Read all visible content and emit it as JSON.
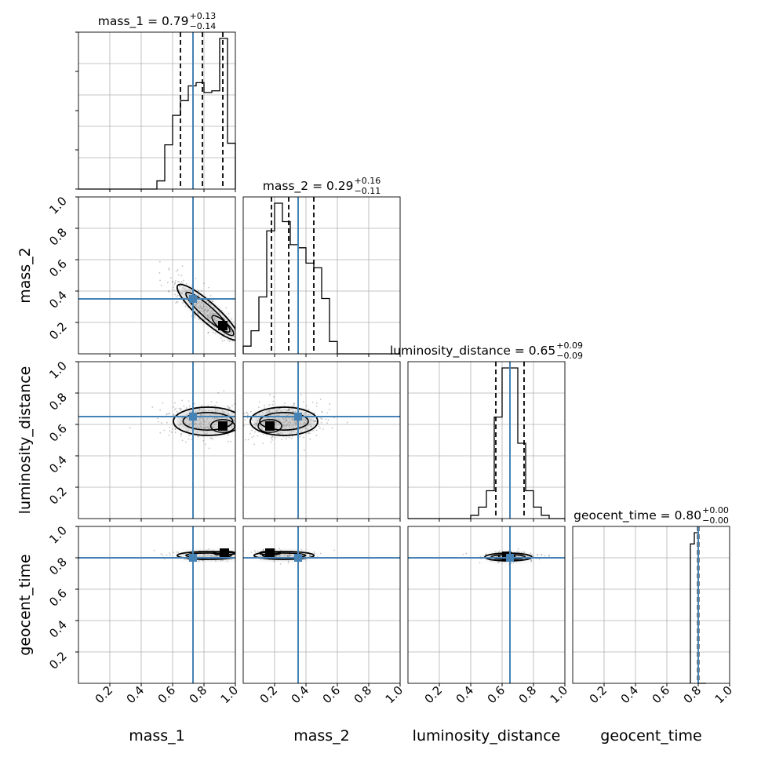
{
  "chart_data": {
    "type": "corner",
    "parameters": [
      "mass_1",
      "mass_2",
      "luminosity_distance",
      "geocent_time"
    ],
    "axis_labels": [
      "mass_1",
      "mass_2",
      "luminosity_distance",
      "geocent_time"
    ],
    "range": [
      0,
      1
    ],
    "tick_values": [
      0.2,
      0.4,
      0.6,
      0.8,
      1.0
    ],
    "tick_labels": [
      "0.2",
      "0.4",
      "0.6",
      "0.8",
      "1.0"
    ],
    "truth": [
      0.73,
      0.35,
      0.65,
      0.8
    ],
    "truth_color": "#4682b4",
    "grid": true,
    "summaries": [
      {
        "param": "mass_1",
        "prefix": "mass_1 = ",
        "median": "0.79",
        "plus": "+0.13",
        "minus": "−0.14",
        "quantiles": [
          0.65,
          0.79,
          0.92
        ]
      },
      {
        "param": "mass_2",
        "prefix": "mass_2 = ",
        "median": "0.29",
        "plus": "+0.16",
        "minus": "−0.11",
        "quantiles": [
          0.18,
          0.29,
          0.45
        ]
      },
      {
        "param": "luminosity_distance",
        "prefix": "luminosity_distance = ",
        "median": "0.65",
        "plus": "+0.09",
        "minus": "−0.09",
        "quantiles": [
          0.56,
          0.65,
          0.74
        ]
      },
      {
        "param": "geocent_time",
        "prefix": "geocent_time = ",
        "median": "0.80",
        "plus": "+0.00",
        "minus": "−0.00",
        "quantiles": [
          0.797,
          0.8,
          0.803
        ]
      }
    ],
    "histograms": [
      {
        "param": "mass_1",
        "bin_edges": [
          0.0,
          0.05,
          0.1,
          0.15,
          0.2,
          0.25,
          0.3,
          0.35,
          0.4,
          0.45,
          0.5,
          0.55,
          0.6,
          0.65,
          0.7,
          0.75,
          0.8,
          0.85,
          0.9,
          0.95,
          1.0
        ],
        "counts": [
          0,
          0,
          0,
          0,
          0,
          0,
          0,
          0,
          0,
          0,
          0.05,
          0.27,
          0.45,
          0.54,
          0.63,
          0.65,
          0.59,
          0.6,
          0.92,
          0.28
        ]
      },
      {
        "param": "mass_2",
        "bin_edges": [
          0.0,
          0.05,
          0.1,
          0.15,
          0.2,
          0.25,
          0.3,
          0.35,
          0.4,
          0.45,
          0.5,
          0.55,
          0.6,
          0.65,
          0.7,
          0.75,
          0.8,
          0.85,
          0.9,
          0.95,
          1.0
        ],
        "counts": [
          0.05,
          0.15,
          0.37,
          0.8,
          0.98,
          0.86,
          0.71,
          0.69,
          0.59,
          0.56,
          0.36,
          0.08,
          0,
          0,
          0,
          0,
          0,
          0,
          0,
          0
        ]
      },
      {
        "param": "luminosity_distance",
        "bin_edges": [
          0.0,
          0.05,
          0.1,
          0.15,
          0.2,
          0.25,
          0.3,
          0.35,
          0.4,
          0.45,
          0.5,
          0.55,
          0.6,
          0.65,
          0.7,
          0.75,
          0.8,
          0.85,
          0.9,
          0.95,
          1.0
        ],
        "counts": [
          0,
          0,
          0,
          0,
          0,
          0,
          0,
          0,
          0.02,
          0.07,
          0.17,
          0.62,
          0.92,
          0.92,
          0.46,
          0.17,
          0.07,
          0.02,
          0,
          0
        ]
      },
      {
        "param": "geocent_time",
        "bin_edges": [
          0.75,
          0.775,
          0.8,
          0.825,
          0.85
        ],
        "counts": [
          0.87,
          0.94,
          0,
          0
        ]
      }
    ],
    "pair_panels": [
      {
        "x": "mass_1",
        "y": "mass_2",
        "shape": "elongated, anticorrelated",
        "center": [
          0.73,
          0.35
        ],
        "peak": [
          0.92,
          0.18
        ]
      },
      {
        "x": "mass_1",
        "y": "luminosity_distance",
        "shape": "broad",
        "center": [
          0.73,
          0.65
        ],
        "peak": [
          0.92,
          0.59
        ]
      },
      {
        "x": "mass_2",
        "y": "luminosity_distance",
        "shape": "broad",
        "center": [
          0.35,
          0.65
        ],
        "peak": [
          0.17,
          0.59
        ]
      },
      {
        "x": "mass_1",
        "y": "geocent_time",
        "shape": "narrow in y",
        "center": [
          0.73,
          0.8
        ],
        "peak": [
          0.93,
          0.83
        ]
      },
      {
        "x": "mass_2",
        "y": "geocent_time",
        "shape": "narrow in y",
        "center": [
          0.35,
          0.8
        ],
        "peak": [
          0.17,
          0.83
        ]
      },
      {
        "x": "luminosity_distance",
        "y": "geocent_time",
        "shape": "narrow in y",
        "center": [
          0.65,
          0.8
        ],
        "peak": [
          0.63,
          0.81
        ]
      }
    ]
  }
}
